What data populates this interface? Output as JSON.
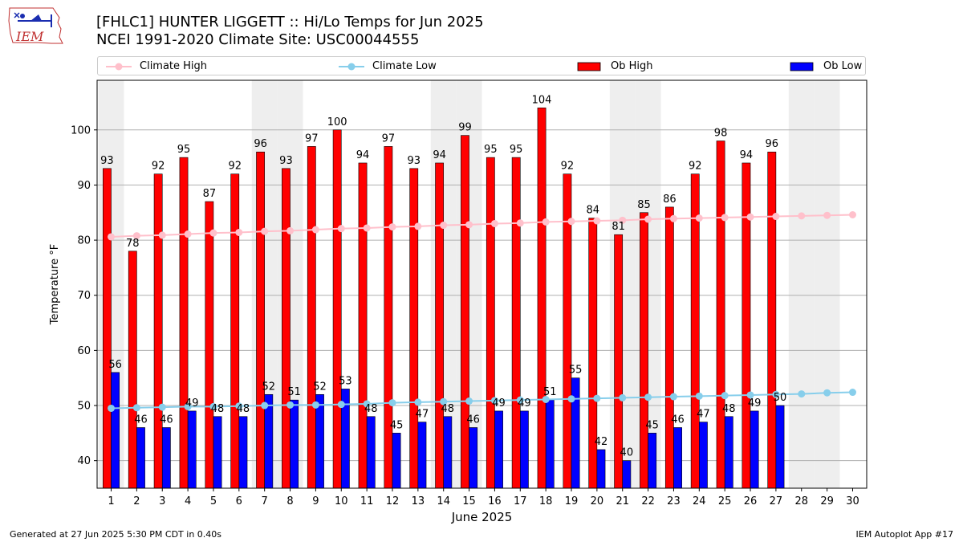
{
  "header": {
    "title_line1": "[FHLC1] HUNTER LIGGETT :: Hi/Lo Temps for Jun 2025",
    "title_line2": "NCEI 1991-2020 Climate Site: USC00044555",
    "logo_text": "IEM"
  },
  "footer": {
    "left": "Generated at 27 Jun 2025 5:30 PM CDT in 0.40s",
    "right": "IEM Autoplot App #17"
  },
  "colors": {
    "climate_high": "#ffc0cb",
    "climate_low": "#87ceeb",
    "ob_high": "#ff0000",
    "ob_low": "#0000ff",
    "weekend_shade": "#eeeeee",
    "grid": "#b0b0b0"
  },
  "chart_data": {
    "type": "bar",
    "title": "[FHLC1] HUNTER LIGGETT :: Hi/Lo Temps for Jun 2025",
    "subtitle": "NCEI 1991-2020 Climate Site: USC00044555",
    "xlabel": "June 2025",
    "ylabel": "Temperature °F",
    "ylim": [
      35,
      109
    ],
    "yticks": [
      40,
      50,
      60,
      70,
      80,
      90,
      100
    ],
    "grid": "horizontal",
    "legend": "top",
    "categories": [
      "1",
      "2",
      "3",
      "4",
      "5",
      "6",
      "7",
      "8",
      "9",
      "10",
      "11",
      "12",
      "13",
      "14",
      "15",
      "16",
      "17",
      "18",
      "19",
      "20",
      "21",
      "22",
      "23",
      "24",
      "25",
      "26",
      "27",
      "28",
      "29",
      "30"
    ],
    "shaded_days": [
      1,
      7,
      8,
      14,
      15,
      21,
      22,
      28,
      29
    ],
    "series": [
      {
        "name": "Ob High",
        "kind": "bar",
        "values": [
          93,
          78,
          92,
          95,
          87,
          92,
          96,
          93,
          97,
          100,
          94,
          97,
          93,
          94,
          99,
          95,
          95,
          104,
          92,
          84,
          81,
          85,
          86,
          92,
          98,
          94,
          96,
          null,
          null,
          null
        ]
      },
      {
        "name": "Ob Low",
        "kind": "bar",
        "values": [
          56,
          46,
          46,
          49,
          48,
          48,
          52,
          51,
          52,
          53,
          48,
          45,
          47,
          48,
          46,
          49,
          49,
          51,
          55,
          42,
          40,
          45,
          46,
          47,
          48,
          49,
          50,
          null,
          null,
          null
        ]
      },
      {
        "name": "Climate High",
        "kind": "line",
        "values": [
          80.6,
          80.8,
          80.9,
          81.1,
          81.3,
          81.4,
          81.6,
          81.7,
          81.9,
          82.1,
          82.2,
          82.4,
          82.5,
          82.7,
          82.8,
          83.0,
          83.1,
          83.3,
          83.4,
          83.5,
          83.6,
          83.8,
          83.9,
          84.0,
          84.1,
          84.2,
          84.3,
          84.4,
          84.5,
          84.6
        ]
      },
      {
        "name": "Climate Low",
        "kind": "line",
        "values": [
          49.5,
          49.6,
          49.7,
          49.8,
          49.8,
          49.9,
          50.0,
          50.1,
          50.1,
          50.2,
          50.3,
          50.5,
          50.6,
          50.7,
          50.8,
          50.9,
          51.0,
          51.1,
          51.2,
          51.3,
          51.4,
          51.5,
          51.6,
          51.7,
          51.8,
          51.9,
          52.0,
          52.1,
          52.3,
          52.4
        ]
      }
    ]
  }
}
